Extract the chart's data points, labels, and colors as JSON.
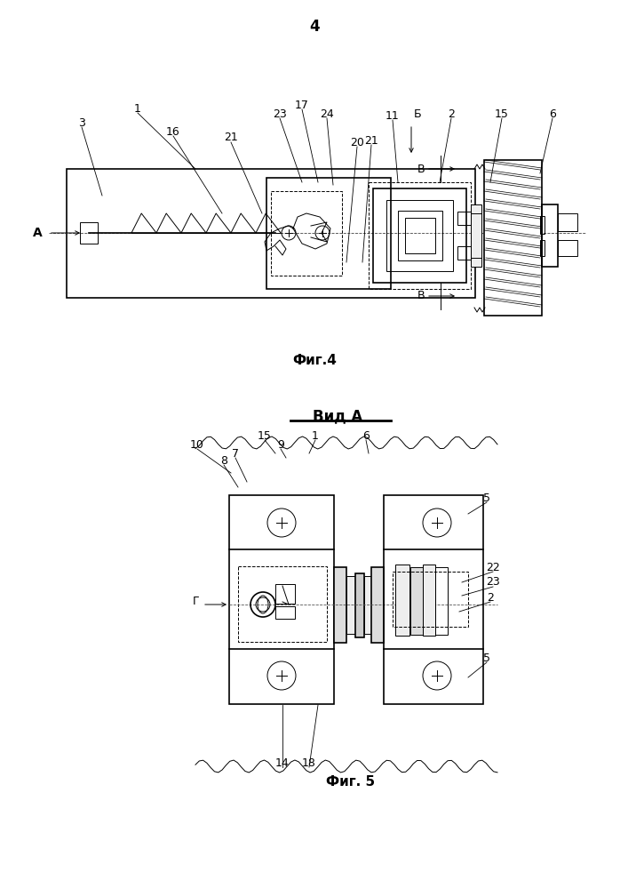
{
  "page_number": "4",
  "fig4_caption": "Фиг.4",
  "fig5_caption": "Фиг. 5",
  "vid_a_label": "Вид А",
  "background_color": "#ffffff",
  "line_color": "#000000"
}
